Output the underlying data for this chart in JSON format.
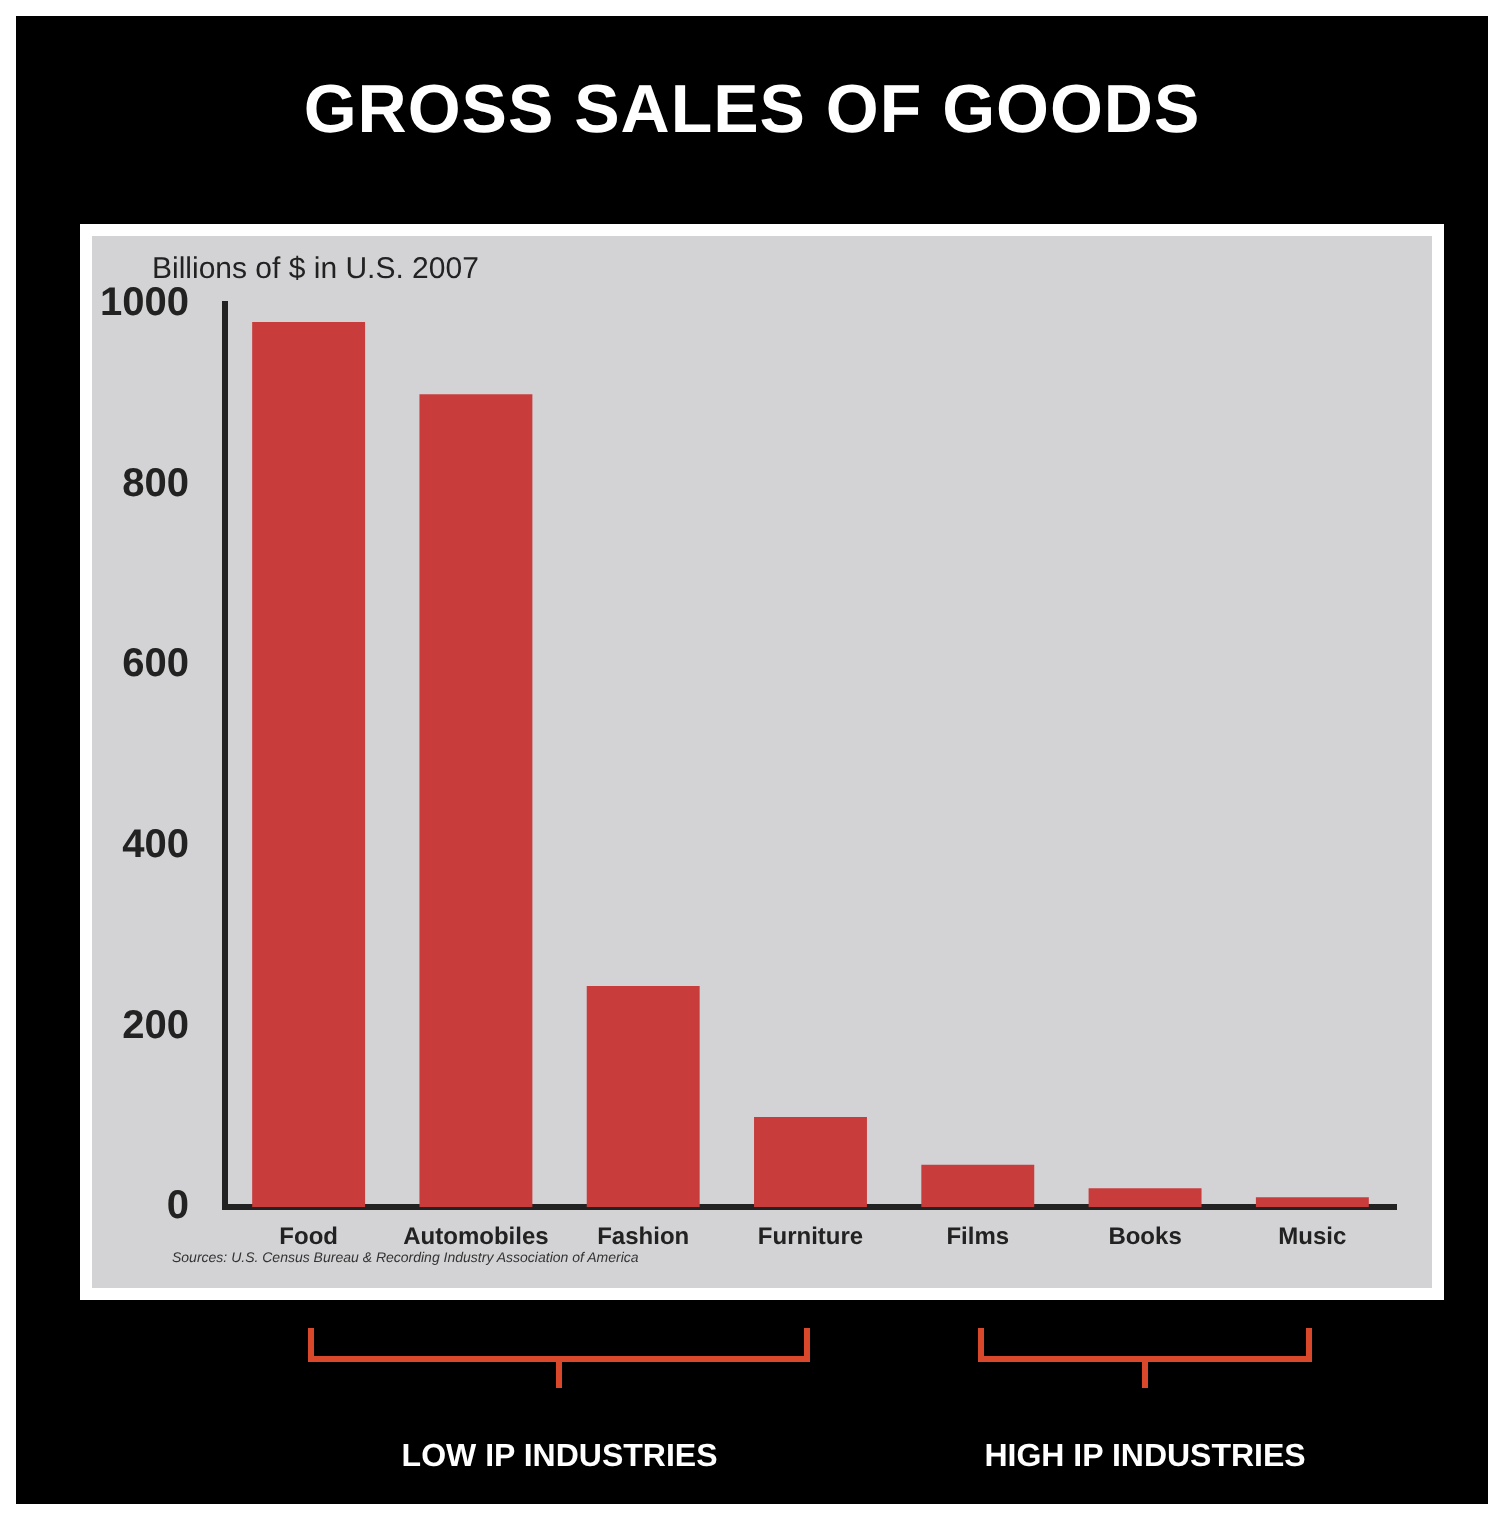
{
  "chart_data": {
    "type": "bar",
    "title": "GROSS SALES OF GOODS",
    "ylabel": "Billions of $ in U.S. 2007",
    "categories": [
      "Food",
      "Automobiles",
      "Fashion",
      "Furniture",
      "Films",
      "Books",
      "Music"
    ],
    "values": [
      980,
      900,
      245,
      100,
      47,
      21,
      11
    ],
    "color": "#c83c3c",
    "ylim": [
      0,
      1000
    ],
    "yticks": [
      0,
      200,
      400,
      600,
      800,
      1000
    ],
    "grid": false,
    "legend": false,
    "annotations": [
      "Sources: U.S. Census Bureau & Recording Industry Association of America",
      "LOW IP INDUSTRIES",
      "HIGH IP INDUSTRIES"
    ]
  }
}
